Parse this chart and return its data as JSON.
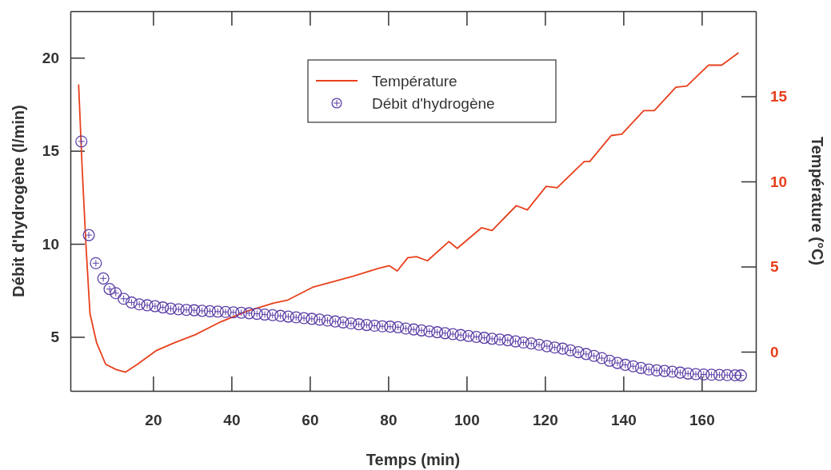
{
  "chart_data": {
    "type": "line",
    "xlabel": "Temps (min)",
    "ylabel": "Débit d'hydrogène (l/min)",
    "y2label": "Température (°C)",
    "xlim": [
      -1.1,
      173.8
    ],
    "xticks": [
      20,
      40,
      60,
      80,
      100,
      120,
      140,
      160
    ],
    "ylim": [
      2.1,
      22.5
    ],
    "yticks": [
      5,
      10,
      15,
      20
    ],
    "y2lim": [
      -2.3,
      20
    ],
    "y2ticks": [
      0,
      5,
      10,
      15
    ],
    "grid": false,
    "legend": "top",
    "series": [
      {
        "name": "Température",
        "axis": "y2",
        "color": "#e8401c",
        "marker": "none",
        "line_style": "solid",
        "x": [
          1.0,
          1.9,
          2.9,
          3.9,
          5.6,
          7.9,
          10.6,
          13.0,
          16.0,
          20.7,
          25.4,
          30.7,
          37.4,
          44.1,
          50.8,
          54.2,
          60.9,
          71.0,
          77.6,
          80.3,
          82.3,
          85.0,
          87.2,
          90.0,
          95.5,
          97.6,
          103.8,
          106.5,
          112.7,
          115.5,
          120.3,
          123.1,
          130.0,
          131.4,
          136.9,
          139.6,
          145.2,
          147.9,
          153.4,
          156.2,
          161.7,
          165.1,
          169.4
        ],
        "values": [
          15.7,
          10.8,
          6.15,
          2.24,
          0.52,
          -0.74,
          -1.05,
          -1.2,
          -0.74,
          0.05,
          0.52,
          0.99,
          1.77,
          2.39,
          2.86,
          3.02,
          3.8,
          4.43,
          4.9,
          5.05,
          4.74,
          5.52,
          5.58,
          5.34,
          6.47,
          6.07,
          7.28,
          7.12,
          8.58,
          8.33,
          9.71,
          9.63,
          11.17,
          11.17,
          12.7,
          12.78,
          14.16,
          14.16,
          15.53,
          15.6,
          16.83,
          16.83,
          17.56
        ]
      },
      {
        "name": "Débit d'hydrogène",
        "type": "scatter",
        "color": "#5b3fa6",
        "marker": "circle",
        "x": [
          1.7,
          3.6,
          5.4,
          7.3,
          8.9,
          10.5,
          12.5,
          14.5,
          16.5,
          18.5,
          20.5,
          22.5,
          24.5,
          26.5,
          28.5,
          30.5,
          32.5,
          34.5,
          36.5,
          38.5,
          40.5,
          42.5,
          44.5,
          46.5,
          48.5,
          50.5,
          52.5,
          54.5,
          56.5,
          58.5,
          60.5,
          62.5,
          64.5,
          66.5,
          68.5,
          70.5,
          72.5,
          74.5,
          76.5,
          78.5,
          80.5,
          82.5,
          84.5,
          86.5,
          88.5,
          90.5,
          92.5,
          94.5,
          96.5,
          98.5,
          100.5,
          102.5,
          104.5,
          106.5,
          108.5,
          110.5,
          112.5,
          114.5,
          116.5,
          118.5,
          120.5,
          122.5,
          124.5,
          126.5,
          128.5,
          130.5,
          132.5,
          134.5,
          136.5,
          138.5,
          140.5,
          142.5,
          144.5,
          146.5,
          148.5,
          150.5,
          152.5,
          154.5,
          156.5,
          158.5,
          160.5,
          162.5,
          164.5,
          166.5,
          168.5,
          170.0
        ],
        "values": [
          15.5,
          10.47,
          8.96,
          8.14,
          7.57,
          7.35,
          7.05,
          6.85,
          6.75,
          6.7,
          6.65,
          6.58,
          6.52,
          6.48,
          6.45,
          6.43,
          6.4,
          6.38,
          6.36,
          6.34,
          6.32,
          6.3,
          6.27,
          6.24,
          6.2,
          6.17,
          6.13,
          6.09,
          6.05,
          6.01,
          5.97,
          5.93,
          5.88,
          5.83,
          5.78,
          5.73,
          5.68,
          5.64,
          5.6,
          5.57,
          5.55,
          5.52,
          5.45,
          5.4,
          5.35,
          5.3,
          5.25,
          5.2,
          5.15,
          5.1,
          5.05,
          5.0,
          4.95,
          4.9,
          4.86,
          4.82,
          4.76,
          4.7,
          4.65,
          4.58,
          4.5,
          4.43,
          4.37,
          4.28,
          4.18,
          4.08,
          3.98,
          3.86,
          3.72,
          3.6,
          3.5,
          3.42,
          3.33,
          3.25,
          3.2,
          3.17,
          3.13,
          3.08,
          3.03,
          3.0,
          2.98,
          2.97,
          2.96,
          2.95,
          2.94,
          2.93
        ]
      }
    ]
  }
}
